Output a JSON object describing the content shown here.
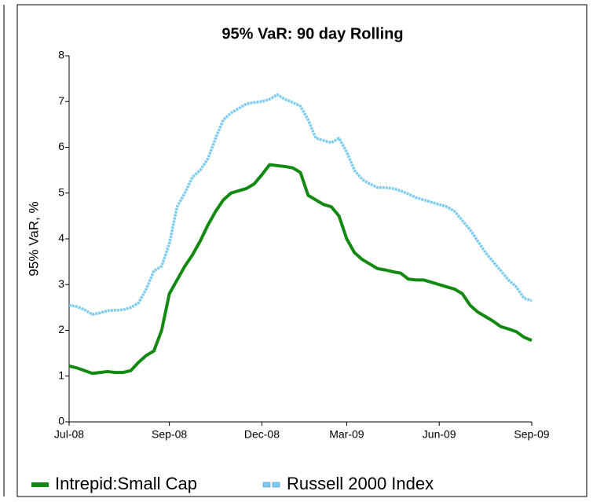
{
  "chart_data": {
    "type": "line",
    "title": "95% VaR: 90 day Rolling",
    "ylabel": "95% VaR, %",
    "categories": [
      "Jul-08",
      null,
      null,
      null,
      null,
      null,
      null,
      null,
      null,
      null,
      null,
      null,
      null,
      "Sep-08",
      null,
      null,
      null,
      null,
      null,
      null,
      null,
      null,
      null,
      null,
      null,
      "Dec-08",
      null,
      null,
      null,
      null,
      null,
      null,
      null,
      null,
      null,
      null,
      "Mar-09",
      null,
      null,
      null,
      null,
      null,
      null,
      null,
      null,
      null,
      null,
      null,
      "Jun-09",
      null,
      null,
      null,
      null,
      null,
      null,
      null,
      null,
      null,
      null,
      null,
      "Sep-09"
    ],
    "series": [
      {
        "name": "Intrepid:Small Cap",
        "color": "#128a12",
        "values": [
          1.22,
          1.18,
          1.12,
          1.06,
          1.08,
          1.1,
          1.08,
          1.08,
          1.12,
          1.3,
          1.45,
          1.55,
          2.0,
          2.8,
          3.1,
          3.4,
          3.65,
          3.95,
          4.3,
          4.6,
          4.85,
          5.0,
          5.05,
          5.1,
          5.2,
          5.4,
          5.62,
          5.6,
          5.58,
          5.55,
          5.45,
          4.95,
          4.85,
          4.75,
          4.7,
          4.5,
          4.0,
          3.7,
          3.55,
          3.45,
          3.35,
          3.32,
          3.28,
          3.25,
          3.12,
          3.1,
          3.1,
          3.05,
          3.0,
          2.95,
          2.9,
          2.8,
          2.55,
          2.4,
          2.3,
          2.2,
          2.08,
          2.03,
          1.97,
          1.85,
          1.78
        ]
      },
      {
        "name": "Russell 2000 Index",
        "color": "#7ccbf0",
        "values": [
          2.55,
          2.52,
          2.45,
          2.35,
          2.38,
          2.43,
          2.44,
          2.45,
          2.5,
          2.6,
          2.9,
          3.3,
          3.4,
          3.9,
          4.7,
          5.0,
          5.35,
          5.5,
          5.75,
          6.2,
          6.6,
          6.75,
          6.85,
          6.95,
          6.98,
          7.0,
          7.05,
          7.15,
          7.05,
          6.98,
          6.9,
          6.6,
          6.2,
          6.15,
          6.1,
          6.2,
          5.9,
          5.5,
          5.3,
          5.2,
          5.12,
          5.12,
          5.1,
          5.05,
          4.98,
          4.9,
          4.85,
          4.8,
          4.75,
          4.7,
          4.6,
          4.4,
          4.2,
          3.95,
          3.7,
          3.5,
          3.3,
          3.1,
          2.95,
          2.7,
          2.65
        ]
      }
    ],
    "ylim": [
      0,
      8
    ],
    "yticks": [
      0,
      1,
      2,
      3,
      4,
      5,
      6,
      7,
      8
    ]
  }
}
